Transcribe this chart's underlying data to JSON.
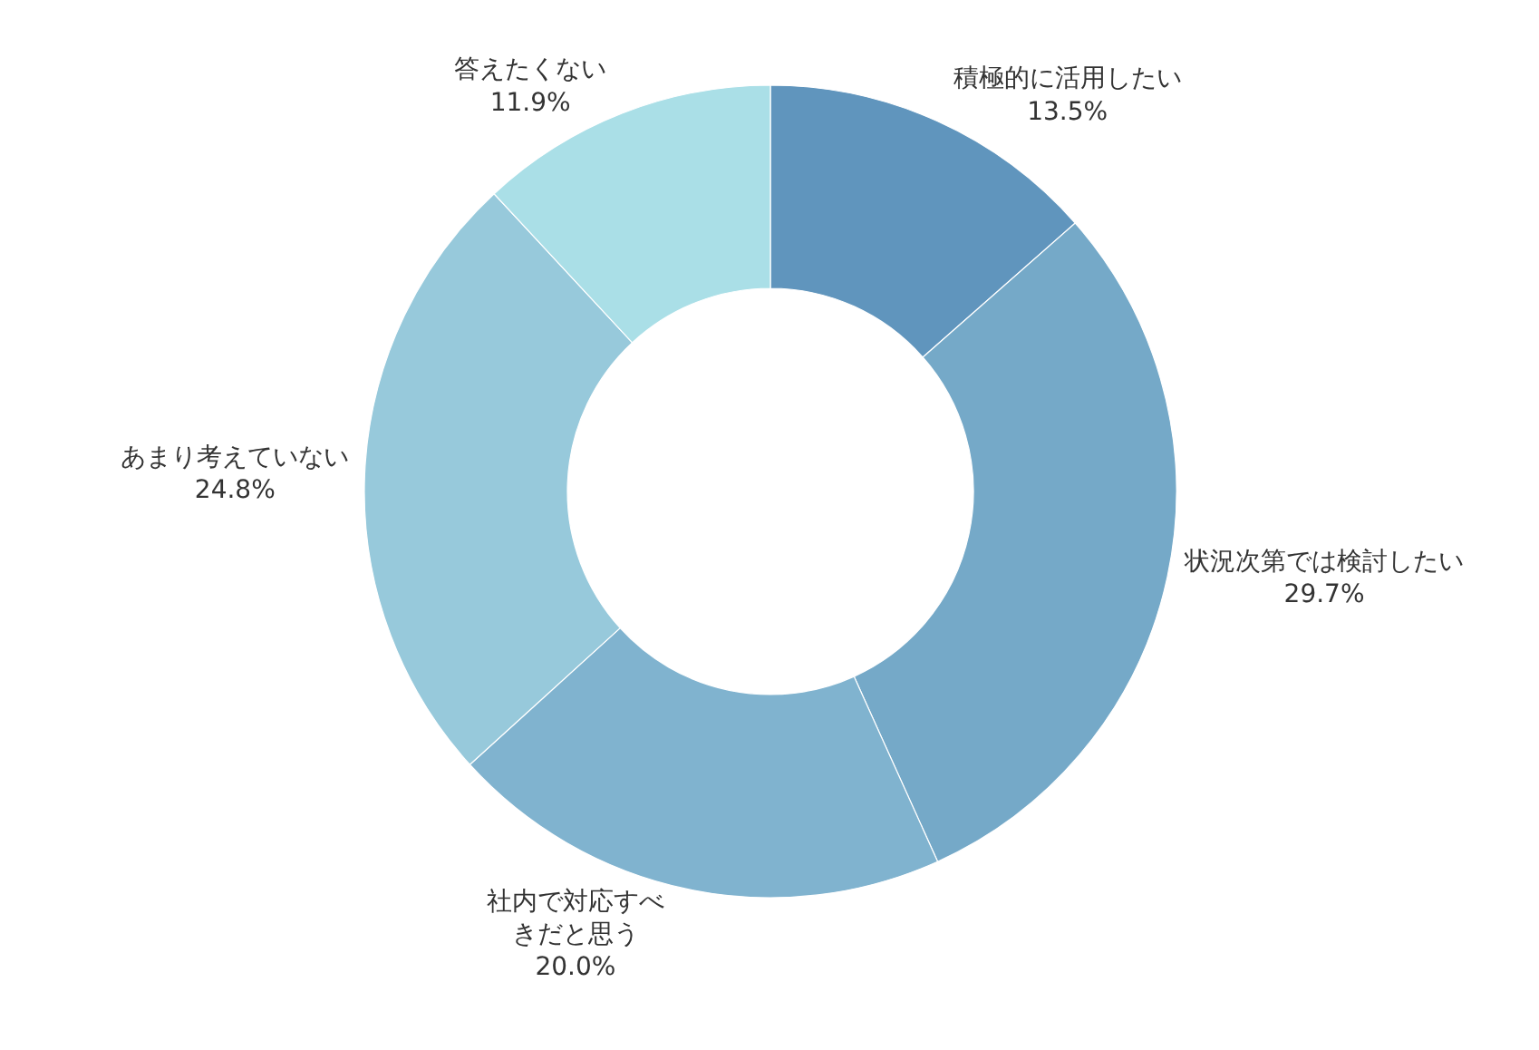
{
  "chart_data": {
    "type": "donut",
    "categories": [
      "積極的に活用したい",
      "状況次第では検討したい",
      "社内で対応すべきだと思う",
      "あまり考えていない",
      "答えたくない"
    ],
    "values": [
      13.5,
      29.7,
      20.0,
      24.8,
      11.9
    ],
    "value_labels": [
      "13.5%",
      "29.7%",
      "20.0%",
      "24.8%",
      "11.9%"
    ],
    "colors": [
      "#6095bd",
      "#75a9c8",
      "#80b3cf",
      "#97c9db",
      "#aadfe7"
    ]
  }
}
